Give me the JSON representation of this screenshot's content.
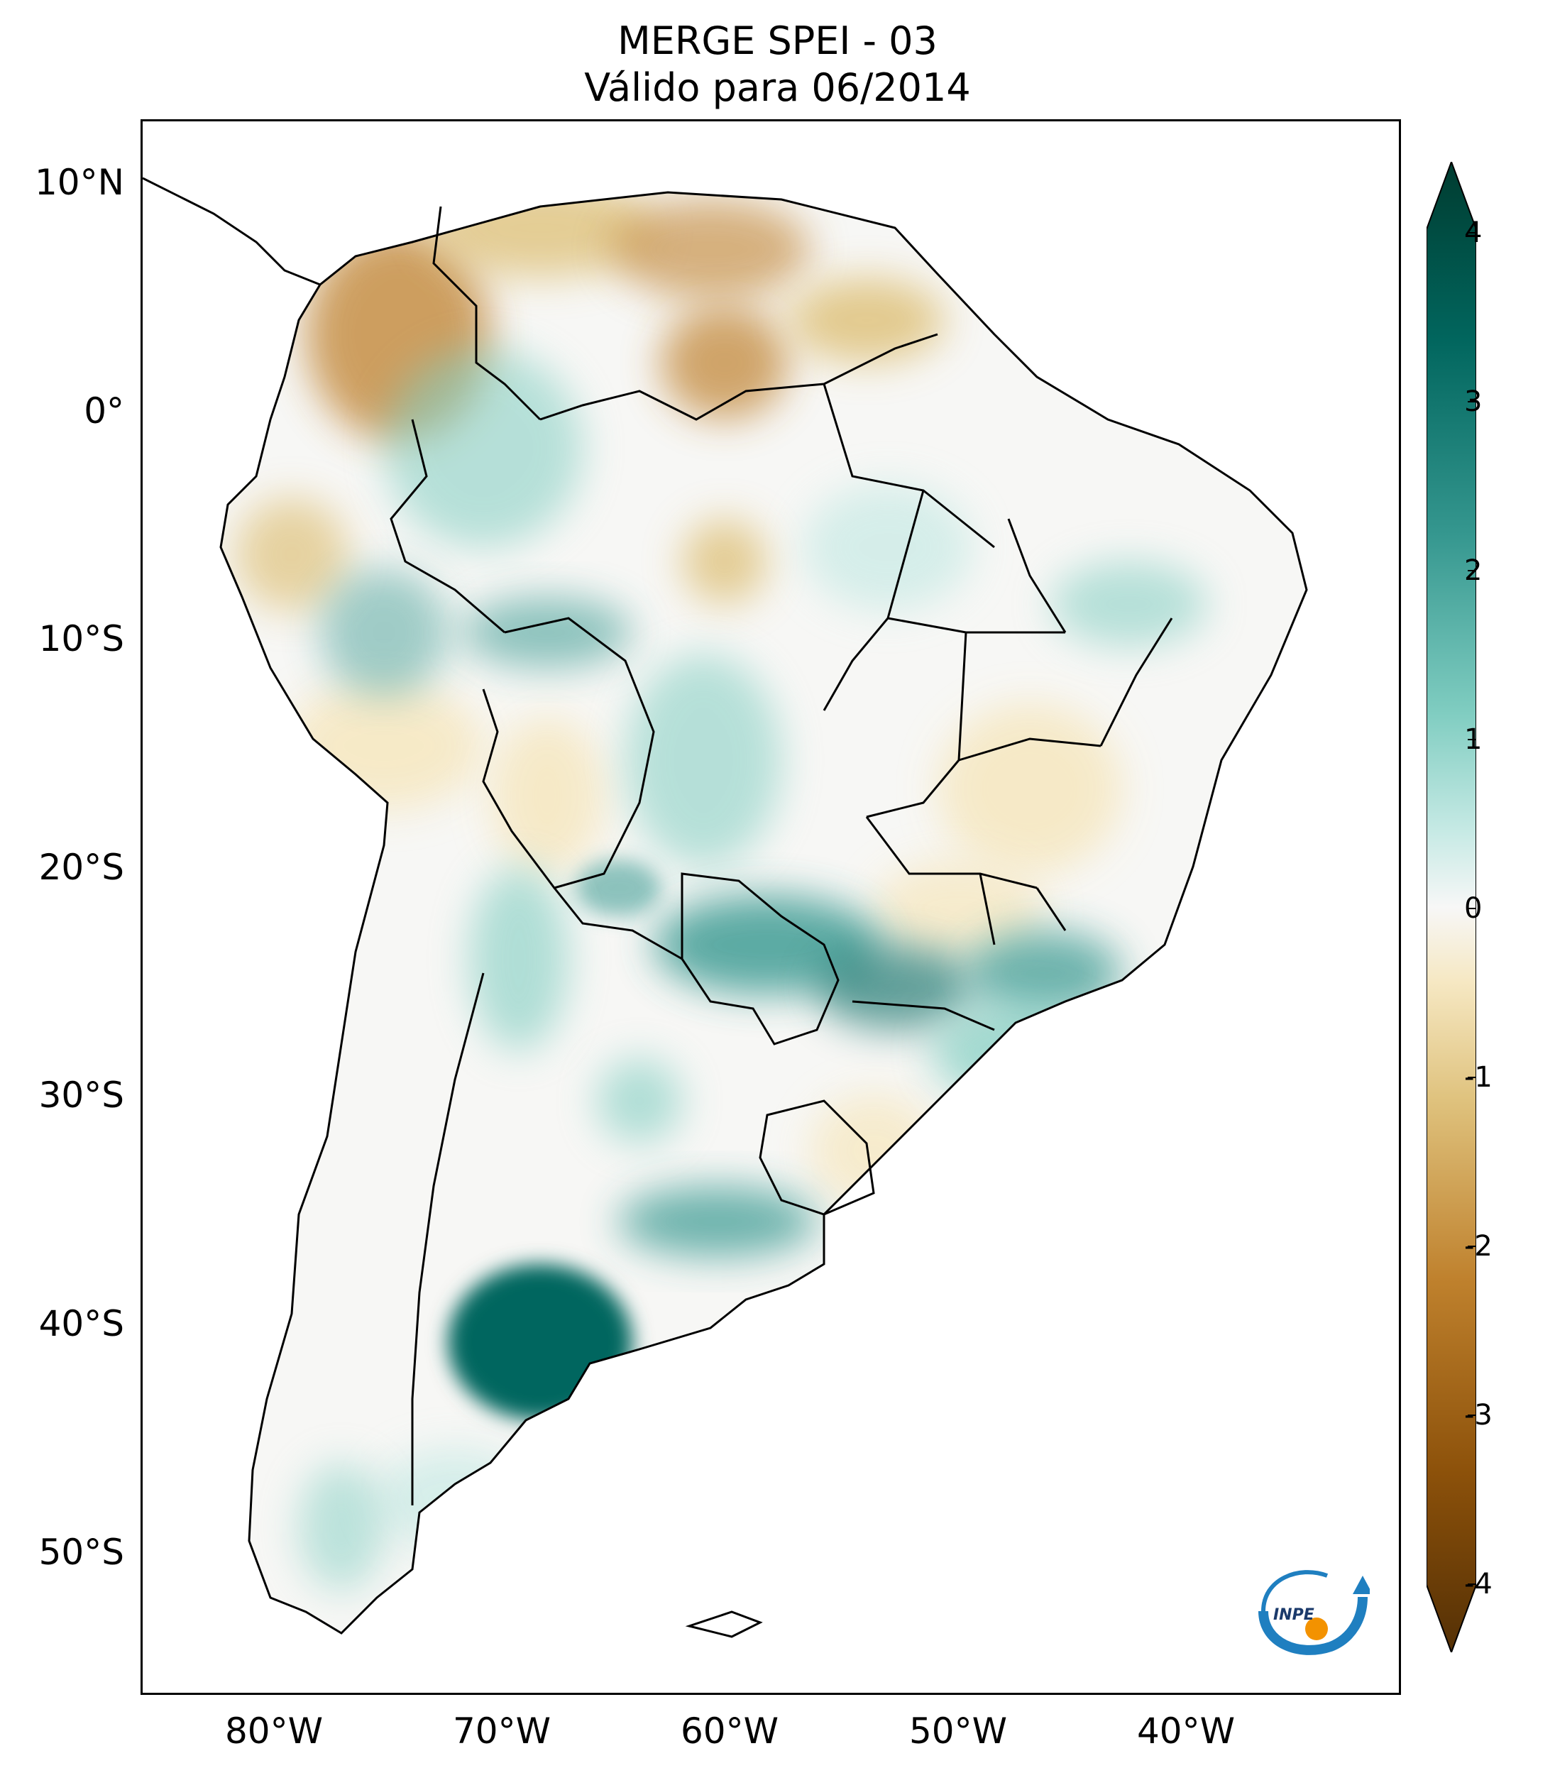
{
  "title": {
    "line1": "MERGE   SPEI - 03",
    "line2": "Válido para 06/2014"
  },
  "map": {
    "lat_labels": [
      "10°N",
      "0°",
      "10°S",
      "20°S",
      "30°S",
      "40°S",
      "50°S"
    ],
    "lon_labels": [
      "80°W",
      "70°W",
      "60°W",
      "50°W",
      "40°W"
    ],
    "lon_range": [
      -85,
      -29
    ],
    "lat_range": [
      -56,
      13
    ]
  },
  "colorbar": {
    "ticks": [
      "4",
      "3",
      "2",
      "1",
      "0",
      "-1",
      "-2",
      "-3",
      "-4"
    ],
    "range": [
      -4,
      4
    ],
    "extend": "both",
    "colors": {
      "dry_extreme": "#543005",
      "dry_strong": "#8c510a",
      "dry_moderate": "#bf812d",
      "dry_mild": "#dfc27d",
      "dry_slight": "#f6e8c3",
      "neutral": "#f5f5f5",
      "wet_slight": "#c7eae5",
      "wet_mild": "#80cdc1",
      "wet_moderate": "#35978f",
      "wet_strong": "#01665e",
      "wet_extreme": "#003c30"
    }
  },
  "logo": {
    "text": "INPE"
  }
}
